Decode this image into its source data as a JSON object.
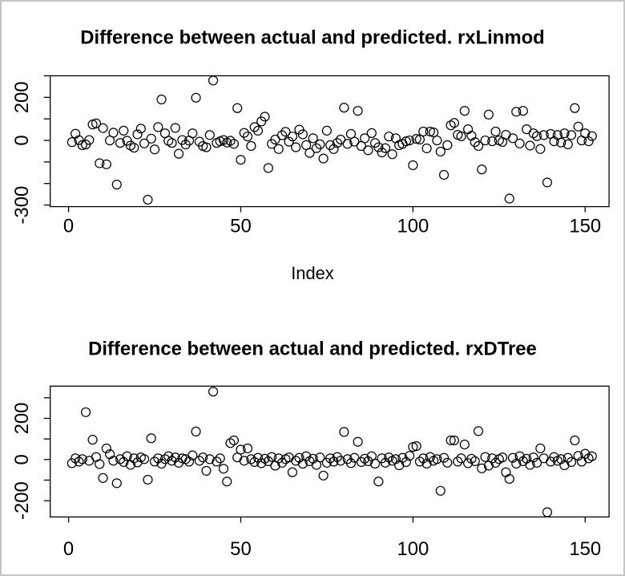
{
  "figure": {
    "background": "#ffffff",
    "border_color": "#c6c6c6",
    "marker_color": "#000000"
  },
  "chart_data": [
    {
      "type": "scatter",
      "title": "Difference between actual and predicted. rxLinmod",
      "xlabel": "Index",
      "ylabel": "",
      "marker": "open-circle",
      "grid": false,
      "legend": null,
      "xlim": [
        -5,
        157
      ],
      "ylim": [
        -307,
        300
      ],
      "x_ticks": [
        {
          "v": 0,
          "label": "0"
        },
        {
          "v": 50,
          "label": "50"
        },
        {
          "v": 100,
          "label": "100"
        },
        {
          "v": 150,
          "label": "150"
        }
      ],
      "y_ticks": [
        {
          "v": 300,
          "label": ""
        },
        {
          "v": 200,
          "label": "200"
        },
        {
          "v": 100,
          "label": ""
        },
        {
          "v": 0,
          "label": "0"
        },
        {
          "v": -100,
          "label": ""
        },
        {
          "v": -200,
          "label": ""
        },
        {
          "v": -300,
          "label": "-300"
        }
      ],
      "points": [
        [
          1,
          -8
        ],
        [
          2,
          31
        ],
        [
          3,
          1
        ],
        [
          4,
          -22
        ],
        [
          5,
          -19
        ],
        [
          6,
          2
        ],
        [
          7,
          74
        ],
        [
          8,
          79
        ],
        [
          9,
          -106
        ],
        [
          10,
          57
        ],
        [
          11,
          -111
        ],
        [
          12,
          0
        ],
        [
          13,
          36
        ],
        [
          14,
          -205
        ],
        [
          15,
          -12
        ],
        [
          16,
          45
        ],
        [
          17,
          -2
        ],
        [
          18,
          -24
        ],
        [
          19,
          -34
        ],
        [
          20,
          28
        ],
        [
          21,
          55
        ],
        [
          22,
          -14
        ],
        [
          23,
          -275
        ],
        [
          24,
          8
        ],
        [
          25,
          -42
        ],
        [
          26,
          62
        ],
        [
          27,
          190
        ],
        [
          28,
          33
        ],
        [
          29,
          -2
        ],
        [
          30,
          -12
        ],
        [
          31,
          58
        ],
        [
          32,
          -62
        ],
        [
          33,
          2
        ],
        [
          34,
          -19
        ],
        [
          35,
          -1
        ],
        [
          36,
          33
        ],
        [
          37,
          198
        ],
        [
          38,
          -6
        ],
        [
          39,
          -26
        ],
        [
          40,
          -32
        ],
        [
          41,
          25
        ],
        [
          42,
          278
        ],
        [
          43,
          -12
        ],
        [
          44,
          -4
        ],
        [
          45,
          2
        ],
        [
          46,
          -10
        ],
        [
          47,
          -2
        ],
        [
          48,
          -16
        ],
        [
          49,
          150
        ],
        [
          50,
          -90
        ],
        [
          51,
          35
        ],
        [
          52,
          18
        ],
        [
          53,
          -26
        ],
        [
          54,
          62
        ],
        [
          55,
          45
        ],
        [
          56,
          88
        ],
        [
          57,
          110
        ],
        [
          58,
          -128
        ],
        [
          59,
          -16
        ],
        [
          60,
          4
        ],
        [
          61,
          -40
        ],
        [
          62,
          24
        ],
        [
          63,
          40
        ],
        [
          64,
          -6
        ],
        [
          65,
          18
        ],
        [
          66,
          -32
        ],
        [
          67,
          50
        ],
        [
          68,
          28
        ],
        [
          69,
          -22
        ],
        [
          70,
          -58
        ],
        [
          71,
          10
        ],
        [
          72,
          -36
        ],
        [
          73,
          -18
        ],
        [
          74,
          -84
        ],
        [
          75,
          45
        ],
        [
          76,
          -22
        ],
        [
          77,
          -40
        ],
        [
          78,
          -12
        ],
        [
          79,
          4
        ],
        [
          80,
          152
        ],
        [
          81,
          -16
        ],
        [
          82,
          30
        ],
        [
          83,
          -6
        ],
        [
          84,
          137
        ],
        [
          85,
          -26
        ],
        [
          86,
          10
        ],
        [
          87,
          -46
        ],
        [
          88,
          34
        ],
        [
          89,
          -12
        ],
        [
          90,
          -32
        ],
        [
          91,
          -56
        ],
        [
          92,
          -36
        ],
        [
          93,
          18
        ],
        [
          94,
          -64
        ],
        [
          95,
          10
        ],
        [
          96,
          -22
        ],
        [
          97,
          -16
        ],
        [
          98,
          -4
        ],
        [
          99,
          0
        ],
        [
          100,
          -115
        ],
        [
          101,
          7
        ],
        [
          102,
          4
        ],
        [
          103,
          41
        ],
        [
          104,
          -37
        ],
        [
          105,
          41
        ],
        [
          106,
          37
        ],
        [
          107,
          0
        ],
        [
          108,
          -52
        ],
        [
          109,
          -160
        ],
        [
          110,
          -22
        ],
        [
          111,
          70
        ],
        [
          112,
          81
        ],
        [
          113,
          26
        ],
        [
          114,
          19
        ],
        [
          115,
          137
        ],
        [
          116,
          52
        ],
        [
          117,
          22
        ],
        [
          118,
          -8
        ],
        [
          119,
          -26
        ],
        [
          120,
          -135
        ],
        [
          121,
          0
        ],
        [
          122,
          120
        ],
        [
          123,
          -4
        ],
        [
          124,
          41
        ],
        [
          125,
          0
        ],
        [
          126,
          -7
        ],
        [
          127,
          26
        ],
        [
          128,
          -270
        ],
        [
          129,
          10
        ],
        [
          130,
          133
        ],
        [
          131,
          -14
        ],
        [
          132,
          137
        ],
        [
          133,
          52
        ],
        [
          134,
          -24
        ],
        [
          135,
          33
        ],
        [
          136,
          20
        ],
        [
          137,
          -40
        ],
        [
          138,
          25
        ],
        [
          139,
          -195
        ],
        [
          140,
          30
        ],
        [
          141,
          -4
        ],
        [
          142,
          25
        ],
        [
          143,
          -10
        ],
        [
          144,
          33
        ],
        [
          145,
          -18
        ],
        [
          146,
          25
        ],
        [
          147,
          150
        ],
        [
          148,
          64
        ],
        [
          149,
          0
        ],
        [
          150,
          33
        ],
        [
          151,
          -4
        ],
        [
          152,
          20
        ]
      ]
    },
    {
      "type": "scatter",
      "title": "Difference between actual and predicted. rxDTree",
      "xlabel": "",
      "ylabel": "",
      "marker": "open-circle",
      "grid": false,
      "legend": null,
      "xlim": [
        -5,
        157
      ],
      "ylim": [
        -279,
        357
      ],
      "x_ticks": [
        {
          "v": 0,
          "label": "0"
        },
        {
          "v": 50,
          "label": "50"
        },
        {
          "v": 100,
          "label": "100"
        },
        {
          "v": 150,
          "label": "150"
        }
      ],
      "y_ticks": [
        {
          "v": 300,
          "label": ""
        },
        {
          "v": 200,
          "label": "200"
        },
        {
          "v": 100,
          "label": ""
        },
        {
          "v": 0,
          "label": "0"
        },
        {
          "v": -100,
          "label": ""
        },
        {
          "v": -200,
          "label": "-200"
        }
      ],
      "points": [
        [
          1,
          -18
        ],
        [
          2,
          6
        ],
        [
          3,
          -10
        ],
        [
          4,
          2
        ],
        [
          5,
          230
        ],
        [
          6,
          -6
        ],
        [
          7,
          96
        ],
        [
          8,
          12
        ],
        [
          9,
          -22
        ],
        [
          10,
          -90
        ],
        [
          11,
          54
        ],
        [
          12,
          26
        ],
        [
          13,
          -6
        ],
        [
          14,
          -115
        ],
        [
          15,
          2
        ],
        [
          16,
          -12
        ],
        [
          17,
          16
        ],
        [
          18,
          -26
        ],
        [
          19,
          6
        ],
        [
          20,
          -14
        ],
        [
          21,
          10
        ],
        [
          22,
          2
        ],
        [
          23,
          -98
        ],
        [
          24,
          103
        ],
        [
          25,
          -10
        ],
        [
          26,
          6
        ],
        [
          27,
          -20
        ],
        [
          28,
          2
        ],
        [
          29,
          16
        ],
        [
          30,
          -6
        ],
        [
          31,
          10
        ],
        [
          32,
          -16
        ],
        [
          33,
          6
        ],
        [
          34,
          2
        ],
        [
          35,
          -10
        ],
        [
          36,
          20
        ],
        [
          37,
          136
        ],
        [
          38,
          -6
        ],
        [
          39,
          10
        ],
        [
          40,
          -55
        ],
        [
          41,
          2
        ],
        [
          42,
          330
        ],
        [
          43,
          -10
        ],
        [
          44,
          6
        ],
        [
          45,
          -45
        ],
        [
          46,
          -107
        ],
        [
          47,
          80
        ],
        [
          48,
          93
        ],
        [
          49,
          10
        ],
        [
          50,
          48
        ],
        [
          51,
          -6
        ],
        [
          52,
          54
        ],
        [
          53,
          2
        ],
        [
          54,
          -12
        ],
        [
          55,
          8
        ],
        [
          56,
          -18
        ],
        [
          57,
          4
        ],
        [
          58,
          -8
        ],
        [
          59,
          12
        ],
        [
          60,
          -30
        ],
        [
          61,
          6
        ],
        [
          62,
          -16
        ],
        [
          63,
          2
        ],
        [
          64,
          10
        ],
        [
          65,
          -62
        ],
        [
          66,
          -6
        ],
        [
          67,
          8
        ],
        [
          68,
          -20
        ],
        [
          69,
          16
        ],
        [
          70,
          -8
        ],
        [
          71,
          4
        ],
        [
          72,
          -26
        ],
        [
          73,
          10
        ],
        [
          74,
          -78
        ],
        [
          75,
          -16
        ],
        [
          76,
          6
        ],
        [
          77,
          -10
        ],
        [
          78,
          12
        ],
        [
          79,
          -6
        ],
        [
          80,
          134
        ],
        [
          81,
          2
        ],
        [
          82,
          -18
        ],
        [
          83,
          8
        ],
        [
          84,
          86
        ],
        [
          85,
          -12
        ],
        [
          86,
          4
        ],
        [
          87,
          -8
        ],
        [
          88,
          16
        ],
        [
          89,
          -20
        ],
        [
          90,
          -107
        ],
        [
          91,
          6
        ],
        [
          92,
          -16
        ],
        [
          93,
          10
        ],
        [
          94,
          -6
        ],
        [
          95,
          2
        ],
        [
          96,
          -28
        ],
        [
          97,
          8
        ],
        [
          98,
          -12
        ],
        [
          99,
          18
        ],
        [
          100,
          61
        ],
        [
          101,
          65
        ],
        [
          102,
          -10
        ],
        [
          103,
          6
        ],
        [
          104,
          -20
        ],
        [
          105,
          12
        ],
        [
          106,
          -6
        ],
        [
          107,
          2
        ],
        [
          108,
          -152
        ],
        [
          109,
          8
        ],
        [
          110,
          -16
        ],
        [
          111,
          93
        ],
        [
          112,
          93
        ],
        [
          113,
          -10
        ],
        [
          114,
          6
        ],
        [
          115,
          73
        ],
        [
          116,
          -18
        ],
        [
          117,
          4
        ],
        [
          118,
          -8
        ],
        [
          119,
          138
        ],
        [
          120,
          -43
        ],
        [
          121,
          12
        ],
        [
          122,
          -30
        ],
        [
          123,
          6
        ],
        [
          124,
          -16
        ],
        [
          125,
          2
        ],
        [
          126,
          10
        ],
        [
          127,
          -62
        ],
        [
          128,
          -94
        ],
        [
          129,
          8
        ],
        [
          130,
          -20
        ],
        [
          131,
          16
        ],
        [
          132,
          -8
        ],
        [
          133,
          4
        ],
        [
          134,
          -26
        ],
        [
          135,
          10
        ],
        [
          136,
          -16
        ],
        [
          137,
          54
        ],
        [
          138,
          6
        ],
        [
          139,
          -256
        ],
        [
          140,
          -10
        ],
        [
          141,
          12
        ],
        [
          142,
          -6
        ],
        [
          143,
          2
        ],
        [
          144,
          -28
        ],
        [
          145,
          8
        ],
        [
          146,
          -12
        ],
        [
          147,
          93
        ],
        [
          148,
          18
        ],
        [
          149,
          -10
        ],
        [
          150,
          28
        ],
        [
          151,
          6
        ],
        [
          152,
          16
        ]
      ]
    }
  ]
}
